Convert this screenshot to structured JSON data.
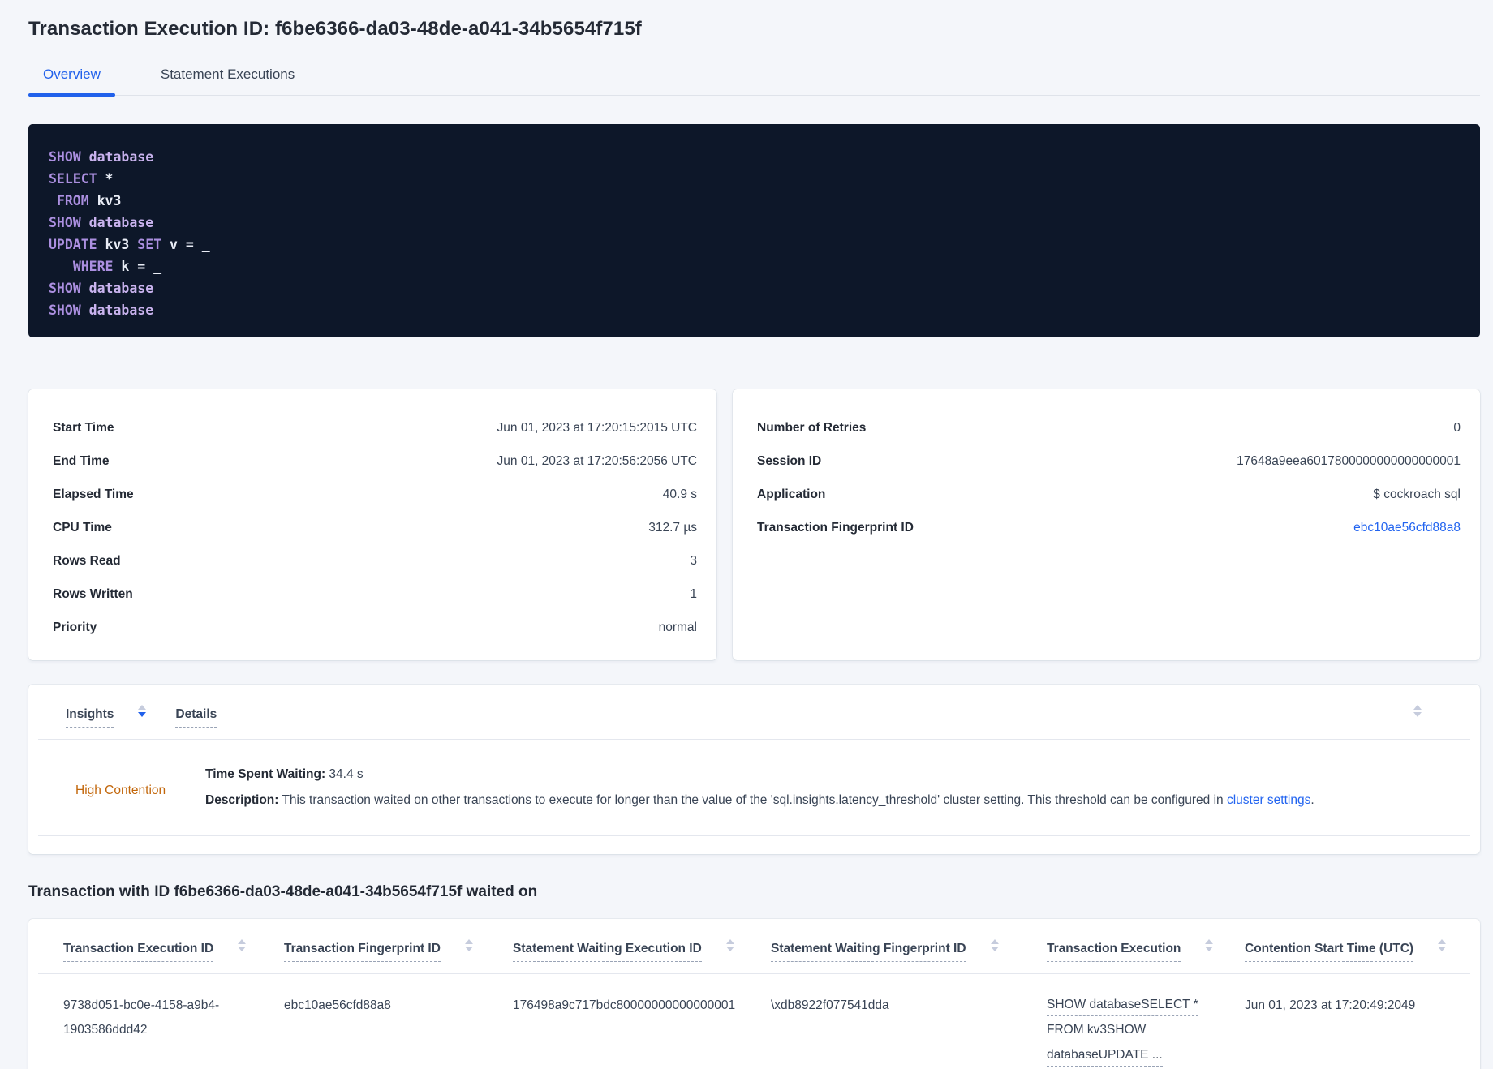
{
  "colors": {
    "accent_blue": "#2161eb",
    "link_blue": "#2264f0",
    "contention_orange": "#c2660a",
    "code_bg": "#0d1729",
    "code_keyword": "#ab8fe0",
    "code_keyword_light": "#c9b3ee",
    "code_text": "#e9edf6",
    "text_dark": "#242a35",
    "text_body": "#394455",
    "page_bg": "#f4f6fa"
  },
  "page": {
    "title": "Transaction Execution ID: f6be6366-da03-48de-a041-34b5654f715f"
  },
  "tabs": [
    {
      "label": "Overview",
      "active": true
    },
    {
      "label": "Statement Executions",
      "active": false
    }
  ],
  "sql_box": {
    "lines": [
      [
        [
          "SHOW ",
          "kw"
        ],
        [
          "database",
          "db"
        ]
      ],
      [
        [
          "SELECT ",
          "kw"
        ],
        [
          "*",
          "id"
        ]
      ],
      [
        [
          " ",
          "pl"
        ],
        [
          "FROM ",
          "kw"
        ],
        [
          "kv3",
          "id"
        ]
      ],
      [
        [
          "SHOW ",
          "kw"
        ],
        [
          "database",
          "db"
        ]
      ],
      [
        [
          "UPDATE ",
          "kw"
        ],
        [
          "kv3",
          "id"
        ],
        [
          " ",
          "pl"
        ],
        [
          "SET ",
          "kw"
        ],
        [
          "v",
          "id"
        ],
        [
          " = ",
          "id"
        ],
        [
          "_",
          "id"
        ]
      ],
      [
        [
          "   ",
          "pl"
        ],
        [
          "WHERE ",
          "kw"
        ],
        [
          "k",
          "id"
        ],
        [
          " = ",
          "id"
        ],
        [
          "_",
          "id"
        ]
      ],
      [
        [
          "SHOW ",
          "kw"
        ],
        [
          "database",
          "db"
        ]
      ],
      [
        [
          "SHOW ",
          "kw"
        ],
        [
          "database",
          "db"
        ]
      ]
    ]
  },
  "summary_left": {
    "rows": [
      {
        "label": "Start Time",
        "value": "Jun 01, 2023 at 17:20:15:2015 UTC"
      },
      {
        "label": "End Time",
        "value": "Jun 01, 2023 at 17:20:56:2056 UTC"
      },
      {
        "label": "Elapsed Time",
        "value": "40.9 s"
      },
      {
        "label": "CPU Time",
        "value": "312.7 µs"
      },
      {
        "label": "Rows Read",
        "value": "3"
      },
      {
        "label": "Rows Written",
        "value": "1"
      },
      {
        "label": "Priority",
        "value": "normal"
      }
    ]
  },
  "summary_right": {
    "rows": [
      {
        "label": "Number of Retries",
        "value": "0"
      },
      {
        "label": "Session ID",
        "value": "17648a9eea6017800000000000000001"
      },
      {
        "label": "Application",
        "value": "$ cockroach sql"
      },
      {
        "label": "Transaction Fingerprint ID",
        "value": "ebc10ae56cfd88a8",
        "link": true
      }
    ]
  },
  "insights_table": {
    "columns": [
      {
        "label": "Insights",
        "sort": "desc"
      },
      {
        "label": "Details",
        "sort": null
      }
    ],
    "row": {
      "insight": "High Contention",
      "waiting_label": "Time Spent Waiting:",
      "waiting_value": " 34.4 s",
      "description_label": "Description:",
      "description_text": " This transaction waited on other transactions to execute for longer than the value of the 'sql.insights.latency_threshold' cluster setting. This threshold can be configured in ",
      "description_link": "cluster settings",
      "description_suffix": "."
    }
  },
  "waited_section": {
    "heading": "Transaction with ID f6be6366-da03-48de-a041-34b5654f715f waited on",
    "columns": [
      "Transaction Execution ID",
      "Transaction Fingerprint ID",
      "Statement Waiting Execution ID",
      "Statement Waiting Fingerprint ID",
      "Transaction Execution",
      "Contention Start Time (UTC)"
    ],
    "row": {
      "transaction_execution_id": "9738d051-bc0e-4158-a9b4-1903586ddd42",
      "transaction_fingerprint_id": "ebc10ae56cfd88a8",
      "statement_waiting_execution_id": "176498a9c717bdc80000000000000001",
      "statement_waiting_fingerprint_id": "\\xdb8922f077541dda",
      "transaction_execution_lines": [
        "SHOW databaseSELECT *",
        "FROM kv3SHOW",
        "databaseUPDATE ..."
      ],
      "contention_start_time": "Jun 01, 2023 at 17:20:49:2049"
    }
  }
}
